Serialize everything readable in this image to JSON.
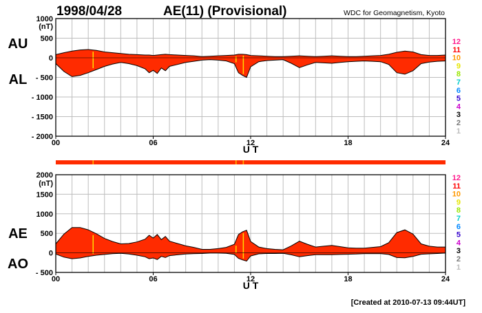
{
  "header": {
    "date": "1998/04/28",
    "title": "AE(11) (Provisional)",
    "source": "WDC for Geomagnetism, Kyoto"
  },
  "footer": {
    "created": "[Created at 2010-07-13 09:44UT]"
  },
  "colors": {
    "fill": "#ff2b00",
    "outline": "#000000",
    "grid": "#bdbdbd",
    "highlight": "#ffdd00",
    "station_bar": "#ff2b00"
  },
  "station_legend": [
    {
      "label": "12",
      "color": "#ff1a8c"
    },
    {
      "label": "11",
      "color": "#ff0000"
    },
    {
      "label": "10",
      "color": "#ff9900"
    },
    {
      "label": "9",
      "color": "#e6e600"
    },
    {
      "label": "8",
      "color": "#99e600"
    },
    {
      "label": "7",
      "color": "#00cccc"
    },
    {
      "label": "6",
      "color": "#0088ff"
    },
    {
      "label": "5",
      "color": "#3300cc"
    },
    {
      "label": "4",
      "color": "#cc00cc"
    },
    {
      "label": "3",
      "color": "#000000"
    },
    {
      "label": "2",
      "color": "#777777"
    },
    {
      "label": "1",
      "color": "#bbbbbb"
    }
  ],
  "chart_data": [
    {
      "type": "area",
      "panel": "AU/AL",
      "series_labels": [
        "AU",
        "AL"
      ],
      "xlabel": "U T",
      "ylabel_unit": "(nT)",
      "xlim": [
        0,
        24
      ],
      "ylim": [
        -2000,
        1000
      ],
      "x_ticks": [
        "00",
        "06",
        "12",
        "18",
        "24"
      ],
      "y_ticks": [
        {
          "v": 1000,
          "label": "1000"
        },
        {
          "v": 500,
          "label": "500"
        },
        {
          "v": 0,
          "label": "0"
        },
        {
          "v": -500,
          "label": "- 500"
        },
        {
          "v": -1000,
          "label": "- 1000"
        },
        {
          "v": -1500,
          "label": "- 1500"
        },
        {
          "v": -2000,
          "label": "- 2000"
        }
      ],
      "x": [
        0,
        0.5,
        1,
        1.5,
        2,
        2.5,
        3,
        3.5,
        4,
        4.5,
        5,
        5.5,
        5.75,
        6,
        6.25,
        6.5,
        6.75,
        7,
        7.5,
        8,
        8.5,
        9,
        9.5,
        10,
        10.5,
        11,
        11.25,
        11.5,
        11.75,
        12,
        12.5,
        13,
        13.5,
        14,
        14.5,
        15,
        15.5,
        16,
        16.5,
        17,
        17.5,
        18,
        18.5,
        19,
        19.5,
        20,
        20.5,
        21,
        21.5,
        22,
        22.5,
        23,
        23.5,
        24
      ],
      "au": [
        80,
        130,
        170,
        200,
        210,
        190,
        150,
        130,
        110,
        90,
        80,
        70,
        70,
        60,
        70,
        80,
        90,
        80,
        70,
        60,
        50,
        30,
        40,
        50,
        60,
        70,
        90,
        90,
        80,
        60,
        50,
        40,
        30,
        30,
        40,
        50,
        40,
        30,
        40,
        50,
        40,
        30,
        30,
        40,
        50,
        60,
        90,
        140,
        170,
        150,
        80,
        60,
        60,
        70
      ],
      "al": [
        -150,
        -350,
        -480,
        -450,
        -380,
        -300,
        -220,
        -160,
        -120,
        -150,
        -200,
        -280,
        -380,
        -320,
        -400,
        -260,
        -330,
        -220,
        -170,
        -120,
        -90,
        -60,
        -50,
        -60,
        -80,
        -150,
        -380,
        -450,
        -500,
        -230,
        -100,
        -70,
        -60,
        -50,
        -140,
        -250,
        -180,
        -120,
        -130,
        -140,
        -120,
        -100,
        -90,
        -80,
        -90,
        -100,
        -170,
        -380,
        -420,
        -330,
        -150,
        -110,
        -90,
        -80
      ],
      "highlights": [
        2.3,
        11.1,
        11.55
      ]
    },
    {
      "type": "area",
      "panel": "AE/AO",
      "series_labels": [
        "AE",
        "AO"
      ],
      "xlabel": "U T",
      "ylabel_unit": "(nT)",
      "xlim": [
        0,
        24
      ],
      "ylim": [
        -500,
        2000
      ],
      "x_ticks": [
        "00",
        "06",
        "12",
        "18",
        "24"
      ],
      "y_ticks": [
        {
          "v": 2000,
          "label": "2000"
        },
        {
          "v": 1500,
          "label": "1500"
        },
        {
          "v": 1000,
          "label": "1000"
        },
        {
          "v": 500,
          "label": "500"
        },
        {
          "v": 0,
          "label": "0"
        },
        {
          "v": -500,
          "label": "- 500"
        }
      ],
      "x": [
        0,
        0.5,
        1,
        1.5,
        2,
        2.5,
        3,
        3.5,
        4,
        4.5,
        5,
        5.5,
        5.75,
        6,
        6.25,
        6.5,
        6.75,
        7,
        7.5,
        8,
        8.5,
        9,
        9.5,
        10,
        10.5,
        11,
        11.25,
        11.5,
        11.75,
        12,
        12.5,
        13,
        13.5,
        14,
        14.5,
        15,
        15.5,
        16,
        16.5,
        17,
        17.5,
        18,
        18.5,
        19,
        19.5,
        20,
        20.5,
        21,
        21.5,
        22,
        22.5,
        23,
        23.5,
        24
      ],
      "ae": [
        230,
        480,
        650,
        650,
        590,
        490,
        370,
        290,
        230,
        240,
        280,
        350,
        450,
        380,
        470,
        340,
        420,
        300,
        240,
        180,
        140,
        90,
        90,
        110,
        140,
        220,
        470,
        540,
        580,
        290,
        150,
        110,
        90,
        80,
        180,
        300,
        220,
        150,
        170,
        190,
        160,
        130,
        120,
        120,
        140,
        160,
        260,
        520,
        590,
        480,
        230,
        170,
        150,
        150
      ],
      "ao": [
        -30,
        -110,
        -150,
        -130,
        -90,
        -60,
        -40,
        -20,
        -10,
        -30,
        -60,
        -100,
        -150,
        -130,
        -170,
        -90,
        -120,
        -70,
        -50,
        -30,
        -20,
        -15,
        -5,
        -5,
        -10,
        -40,
        -140,
        -180,
        -210,
        -80,
        -25,
        -15,
        -15,
        -10,
        -50,
        -100,
        -70,
        -45,
        -45,
        -45,
        -40,
        -35,
        -30,
        -20,
        -20,
        -20,
        -40,
        -120,
        -125,
        -90,
        -35,
        -25,
        -15,
        -5
      ],
      "highlights": [
        2.3,
        11.1,
        11.55
      ]
    }
  ]
}
